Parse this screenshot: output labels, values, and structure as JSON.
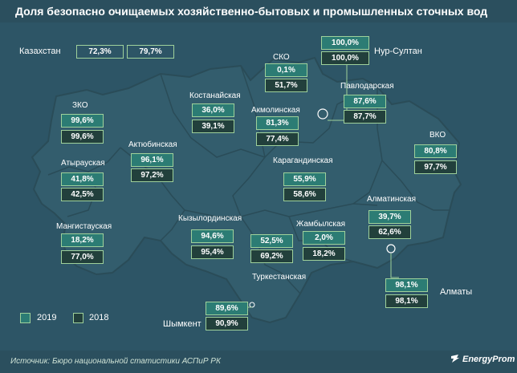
{
  "title": "Доля безопасно очищаемых хозяйственно-бытовых и промышленных сточных вод",
  "kazakhstan": {
    "name": "Казахстан",
    "v2019": "72,3%",
    "v2018": "79,7%"
  },
  "regions": [
    {
      "id": "zko",
      "name": "ЗКО",
      "v2019": "99,6%",
      "v2018": "99,6%"
    },
    {
      "id": "atyrau",
      "name": "Атырауская",
      "v2019": "41,8%",
      "v2018": "42,5%"
    },
    {
      "id": "mangistau",
      "name": "Мангистауская",
      "v2019": "18,2%",
      "v2018": "77,0%"
    },
    {
      "id": "aktobe",
      "name": "Актюбинская",
      "v2019": "96,1%",
      "v2018": "97,2%"
    },
    {
      "id": "kostanay",
      "name": "Костанайская",
      "v2019": "36,0%",
      "v2018": "39,1%"
    },
    {
      "id": "sko",
      "name": "СКО",
      "v2019": "0,1%",
      "v2018": "51,7%"
    },
    {
      "id": "akmola",
      "name": "Акмолинская",
      "v2019": "81,3%",
      "v2018": "77,4%"
    },
    {
      "id": "pavlodar",
      "name": "Павлодарская",
      "v2019": "87,6%",
      "v2018": "87,7%"
    },
    {
      "id": "vko",
      "name": "ВКО",
      "v2019": "80,8%",
      "v2018": "97,7%"
    },
    {
      "id": "karaganda",
      "name": "Карагандинская",
      "v2019": "55,9%",
      "v2018": "58,6%"
    },
    {
      "id": "kyzylorda",
      "name": "Кызылординская",
      "v2019": "94,6%",
      "v2018": "95,4%"
    },
    {
      "id": "turkestan",
      "name": "Туркестанская",
      "v2019": "52,5%",
      "v2018": "69,2%"
    },
    {
      "id": "zhambyl",
      "name": "Жамбылская",
      "v2019": "2,0%",
      "v2018": "18,2%"
    },
    {
      "id": "almaty_region",
      "name": "Алматинская",
      "v2019": "39,7%",
      "v2018": "62,6%"
    }
  ],
  "cities": [
    {
      "id": "nur_sultan",
      "name": "Нур-Султан",
      "v2019": "100,0%",
      "v2018": "100,0%"
    },
    {
      "id": "almaty",
      "name": "Алматы",
      "v2019": "98,1%",
      "v2018": "98,1%"
    },
    {
      "id": "shymkent",
      "name": "Шымкент",
      "v2019": "89,6%",
      "v2018": "90,9%"
    }
  ],
  "legend": {
    "label_2019": "2019",
    "label_2018": "2018"
  },
  "source": "Источник: Бюро национальной  статистики АСПиР РК",
  "logo": "EnergyProm",
  "colors": {
    "background": "#2d5566",
    "map_fill": "#335d6d",
    "box_2019": "#2c7c74",
    "box_2018": "#22403c",
    "box_border": "#9fd19b"
  }
}
